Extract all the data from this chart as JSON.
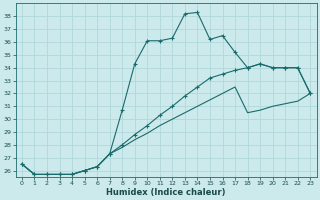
{
  "title": "",
  "xlabel": "Humidex (Indice chaleur)",
  "ylabel": "",
  "background_color": "#cce9ec",
  "line_color": "#1a6b6b",
  "grid_color": "#b0d8dc",
  "ylim": [
    25.5,
    39.0
  ],
  "xlim": [
    -0.5,
    23.5
  ],
  "yticks": [
    26,
    27,
    28,
    29,
    30,
    31,
    32,
    33,
    34,
    35,
    36,
    37,
    38
  ],
  "xticks": [
    0,
    1,
    2,
    3,
    4,
    5,
    6,
    7,
    8,
    9,
    10,
    11,
    12,
    13,
    14,
    15,
    16,
    17,
    18,
    19,
    20,
    21,
    22,
    23
  ],
  "series1_x": [
    0,
    1,
    2,
    3,
    4,
    5,
    6,
    7,
    8,
    9,
    10,
    11,
    12,
    13,
    14,
    15,
    16,
    17,
    18,
    19,
    20,
    21,
    22,
    23
  ],
  "series1_y": [
    26.5,
    25.7,
    25.7,
    25.7,
    25.7,
    26.0,
    26.3,
    27.3,
    30.7,
    34.3,
    36.1,
    36.1,
    36.3,
    38.2,
    38.3,
    36.2,
    36.5,
    35.2,
    34.0,
    34.3,
    34.0,
    34.0,
    34.0,
    32.0
  ],
  "series2_x": [
    0,
    1,
    2,
    3,
    4,
    5,
    6,
    7,
    8,
    9,
    10,
    11,
    12,
    13,
    14,
    15,
    16,
    17,
    18,
    19,
    20,
    21,
    22,
    23
  ],
  "series2_y": [
    26.5,
    25.7,
    25.7,
    25.7,
    25.7,
    26.0,
    26.3,
    27.3,
    28.0,
    28.8,
    29.5,
    30.3,
    31.0,
    31.8,
    32.5,
    33.2,
    33.5,
    33.8,
    34.0,
    34.3,
    34.0,
    34.0,
    34.0,
    32.0
  ],
  "series3_x": [
    0,
    1,
    2,
    3,
    4,
    5,
    6,
    7,
    8,
    9,
    10,
    11,
    12,
    13,
    14,
    15,
    16,
    17,
    18,
    19,
    20,
    21,
    22,
    23
  ],
  "series3_y": [
    26.5,
    25.7,
    25.7,
    25.7,
    25.7,
    26.0,
    26.3,
    27.3,
    27.8,
    28.4,
    28.9,
    29.5,
    30.0,
    30.5,
    31.0,
    31.5,
    32.0,
    32.5,
    30.5,
    30.7,
    31.0,
    31.2,
    31.4,
    32.0
  ]
}
